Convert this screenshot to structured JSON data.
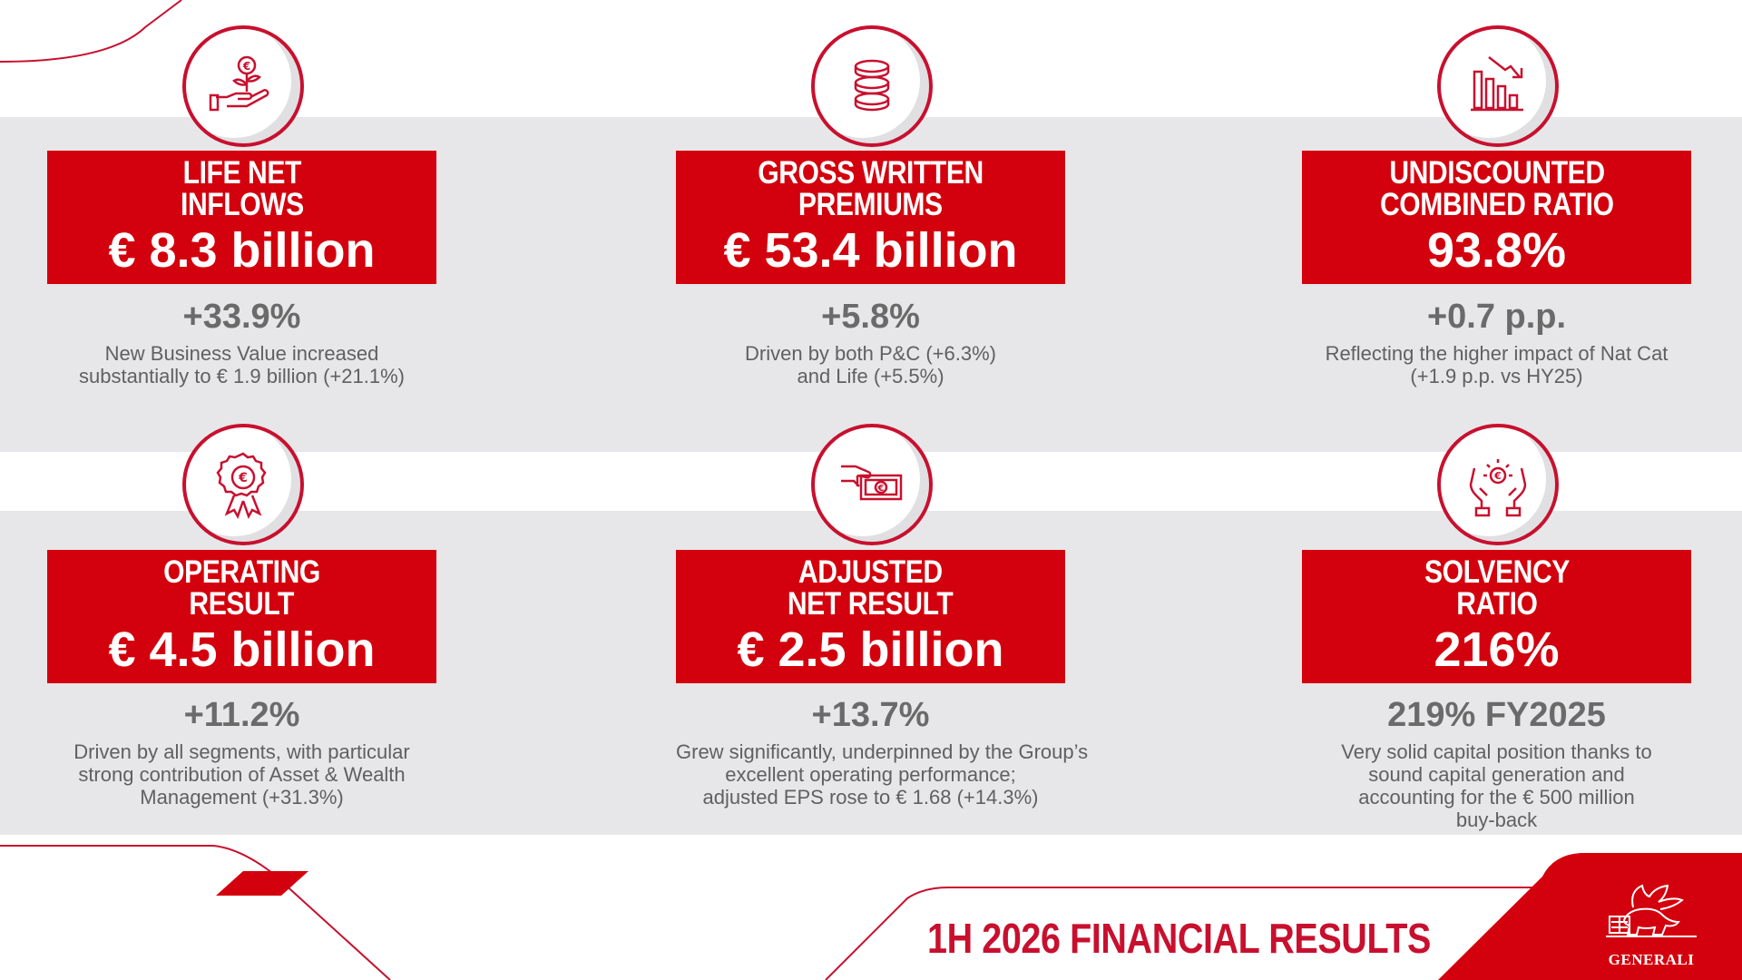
{
  "cards": [
    {
      "title_line1": "LIFE NET",
      "title_line2": "INFLOWS",
      "value": "€ 8.3 billion",
      "change": "+33.9%",
      "desc": [
        "New Business Value increased",
        "substantially to € 1.9 billion (+21.1%)"
      ],
      "icon": "euro-plant-hand-icon"
    },
    {
      "title_line1": "GROSS WRITTEN",
      "title_line2": "PREMIUMS",
      "value": "€ 53.4 billion",
      "change": "+5.8%",
      "desc": [
        "Driven by both P&C (+6.3%)",
        "and Life (+5.5%)"
      ],
      "icon": "coin-stack-icon"
    },
    {
      "title_line1": "UNDISCOUNTED",
      "title_line2": "COMBINED RATIO",
      "value": "93.8%",
      "change": "+0.7 p.p.",
      "desc": [
        "Reflecting the higher impact of Nat Cat",
        "(+1.9 p.p. vs HY25)"
      ],
      "icon": "declining-bar-chart-icon"
    },
    {
      "title_line1": "OPERATING",
      "title_line2": "RESULT",
      "value": "€ 4.5 billion",
      "change": "+11.2%",
      "desc": [
        "Driven by all segments, with particular",
        "strong contribution of Asset & Wealth",
        "Management (+31.3%)"
      ],
      "icon": "euro-award-ribbon-icon"
    },
    {
      "title_line1": "ADJUSTED",
      "title_line2": "NET RESULT",
      "value": "€ 2.5 billion",
      "change": "+13.7%",
      "desc": [
        "Grew significantly, underpinned by the Group’s",
        "excellent operating performance;",
        "adjusted EPS rose to € 1.68 (+14.3%)"
      ],
      "icon": "hand-banknote-icon"
    },
    {
      "title_line1": "SOLVENCY",
      "title_line2": "RATIO",
      "value": "216%",
      "change": "219% FY2025",
      "desc": [
        "Very solid capital position thanks to",
        "sound capital generation and",
        "accounting for the € 500 million",
        "buy-back"
      ],
      "icon": "hands-protecting-euro-icon"
    }
  ],
  "footer": {
    "title": "1H 2026 FINANCIAL RESULTS",
    "logo_text": "GENERALI"
  },
  "colors": {
    "brand_red": "#d3000d",
    "band_gray": "#e7e7e9",
    "text_gray": "#606060"
  }
}
